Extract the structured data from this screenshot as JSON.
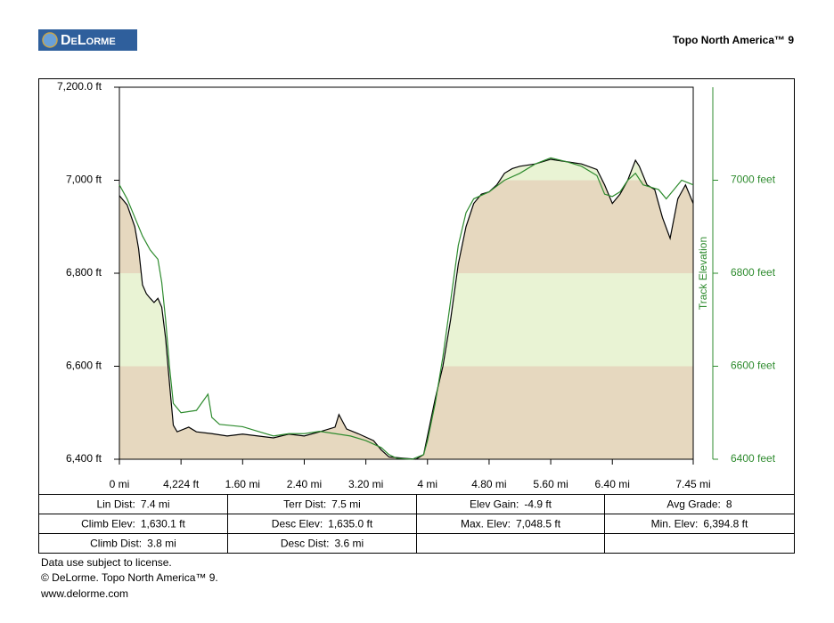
{
  "header": {
    "logo": "DeLorme",
    "product": "Topo North America™ 9"
  },
  "chart_data": {
    "type": "line",
    "y2label": "Track Elevation",
    "xlim": [
      0,
      7.45
    ],
    "xticks": [
      {
        "value": 0,
        "label": "0 mi"
      },
      {
        "value": 0.8,
        "label": "4,224 ft"
      },
      {
        "value": 1.6,
        "label": "1.60 mi"
      },
      {
        "value": 2.4,
        "label": "2.40 mi"
      },
      {
        "value": 3.2,
        "label": "3.20 mi"
      },
      {
        "value": 4,
        "label": "4 mi"
      },
      {
        "value": 4.8,
        "label": "4.80 mi"
      },
      {
        "value": 5.6,
        "label": "5.60 mi"
      },
      {
        "value": 6.4,
        "label": "6.40 mi"
      },
      {
        "value": 7.45,
        "label": "7.45 mi"
      }
    ],
    "ylim": [
      6400,
      7200
    ],
    "yticks": [
      {
        "value": 6400,
        "label": "6,400 ft"
      },
      {
        "value": 6600,
        "label": "6,600 ft"
      },
      {
        "value": 6800,
        "label": "6,800 ft"
      },
      {
        "value": 7000,
        "label": "7,000 ft"
      },
      {
        "value": 7200,
        "label": "7,200.0 ft"
      }
    ],
    "y2lim": [
      6400,
      7200
    ],
    "y2ticks": [
      {
        "value": 6400,
        "label": "6400 feet"
      },
      {
        "value": 6600,
        "label": "6600 feet"
      },
      {
        "value": 6800,
        "label": "6800 feet"
      },
      {
        "value": 7000,
        "label": "7000 feet"
      }
    ],
    "band_colors": [
      "#e6d8bf",
      "#e9f3d4"
    ],
    "series": [
      {
        "color": "#000000",
        "fill": true,
        "x": [
          0,
          0.1,
          0.2,
          0.25,
          0.3,
          0.35,
          0.4,
          0.45,
          0.5,
          0.55,
          0.6,
          0.65,
          0.7,
          0.75,
          0.9,
          1.0,
          1.2,
          1.4,
          1.6,
          1.8,
          2.0,
          2.2,
          2.4,
          2.6,
          2.8,
          2.85,
          2.95,
          3.1,
          3.3,
          3.4,
          3.5,
          3.7,
          3.85,
          3.95,
          4.0,
          4.1,
          4.2,
          4.3,
          4.4,
          4.5,
          4.6,
          4.7,
          4.8,
          4.9,
          5.0,
          5.1,
          5.2,
          5.4,
          5.6,
          5.8,
          6.0,
          6.2,
          6.3,
          6.4,
          6.5,
          6.6,
          6.7,
          6.75,
          6.85,
          6.95,
          7.05,
          7.15,
          7.25,
          7.35,
          7.45
        ],
        "values": [
          6967,
          6947,
          6900,
          6852,
          6775,
          6756,
          6746,
          6737,
          6746,
          6727,
          6660,
          6564,
          6473,
          6459,
          6469,
          6459,
          6455,
          6450,
          6454,
          6450,
          6446,
          6454,
          6450,
          6459,
          6469,
          6496,
          6465,
          6455,
          6440,
          6420,
          6405,
          6402,
          6400,
          6410,
          6450,
          6530,
          6600,
          6700,
          6820,
          6900,
          6950,
          6970,
          6975,
          6990,
          7015,
          7025,
          7030,
          7035,
          7045,
          7040,
          7035,
          7023,
          6990,
          6950,
          6970,
          7000,
          7043,
          7030,
          6990,
          6980,
          6920,
          6875,
          6960,
          6990,
          6950
        ]
      },
      {
        "color": "#2e8b2e",
        "axis": "y2",
        "x": [
          0,
          0.1,
          0.2,
          0.3,
          0.4,
          0.5,
          0.55,
          0.6,
          0.65,
          0.7,
          0.8,
          1.0,
          1.15,
          1.2,
          1.3,
          1.6,
          1.8,
          2.0,
          2.2,
          2.4,
          2.6,
          2.8,
          3.0,
          3.2,
          3.4,
          3.5,
          3.6,
          3.8,
          3.95,
          4.0,
          4.1,
          4.2,
          4.3,
          4.4,
          4.5,
          4.6,
          4.8,
          5.0,
          5.2,
          5.4,
          5.6,
          5.8,
          6.0,
          6.2,
          6.3,
          6.4,
          6.5,
          6.6,
          6.7,
          6.8,
          6.9,
          7.0,
          7.1,
          7.2,
          7.3,
          7.45
        ],
        "values": [
          6990,
          6960,
          6920,
          6880,
          6850,
          6830,
          6780,
          6700,
          6600,
          6520,
          6500,
          6505,
          6540,
          6490,
          6475,
          6470,
          6460,
          6450,
          6455,
          6455,
          6460,
          6455,
          6450,
          6440,
          6425,
          6410,
          6402,
          6400,
          6410,
          6440,
          6520,
          6620,
          6740,
          6860,
          6930,
          6960,
          6975,
          7000,
          7015,
          7035,
          7048,
          7040,
          7030,
          7010,
          6970,
          6965,
          6975,
          7000,
          7015,
          6990,
          6985,
          6980,
          6960,
          6980,
          7000,
          6990
        ]
      }
    ]
  },
  "table": {
    "rows": [
      [
        {
          "label": "Lin Dist:",
          "value": "7.4 mi"
        },
        {
          "label": "Terr Dist:",
          "value": "7.5 mi"
        },
        {
          "label": "Elev Gain:",
          "value": "-4.9 ft"
        },
        {
          "label": "Avg Grade:",
          "value": "8"
        }
      ],
      [
        {
          "label": "Climb Elev:",
          "value": "1,630.1 ft"
        },
        {
          "label": "Desc Elev:",
          "value": "1,635.0 ft"
        },
        {
          "label": "Max. Elev:",
          "value": "7,048.5 ft"
        },
        {
          "label": "Min. Elev:",
          "value": "6,394.8 ft"
        }
      ],
      [
        {
          "label": "Climb Dist:",
          "value": "3.8 mi"
        },
        {
          "label": "Desc Dist:",
          "value": "3.6 mi"
        }
      ]
    ]
  },
  "footer": [
    "Data use subject to license.",
    "© DeLorme. Topo North America™ 9.",
    "www.delorme.com"
  ]
}
